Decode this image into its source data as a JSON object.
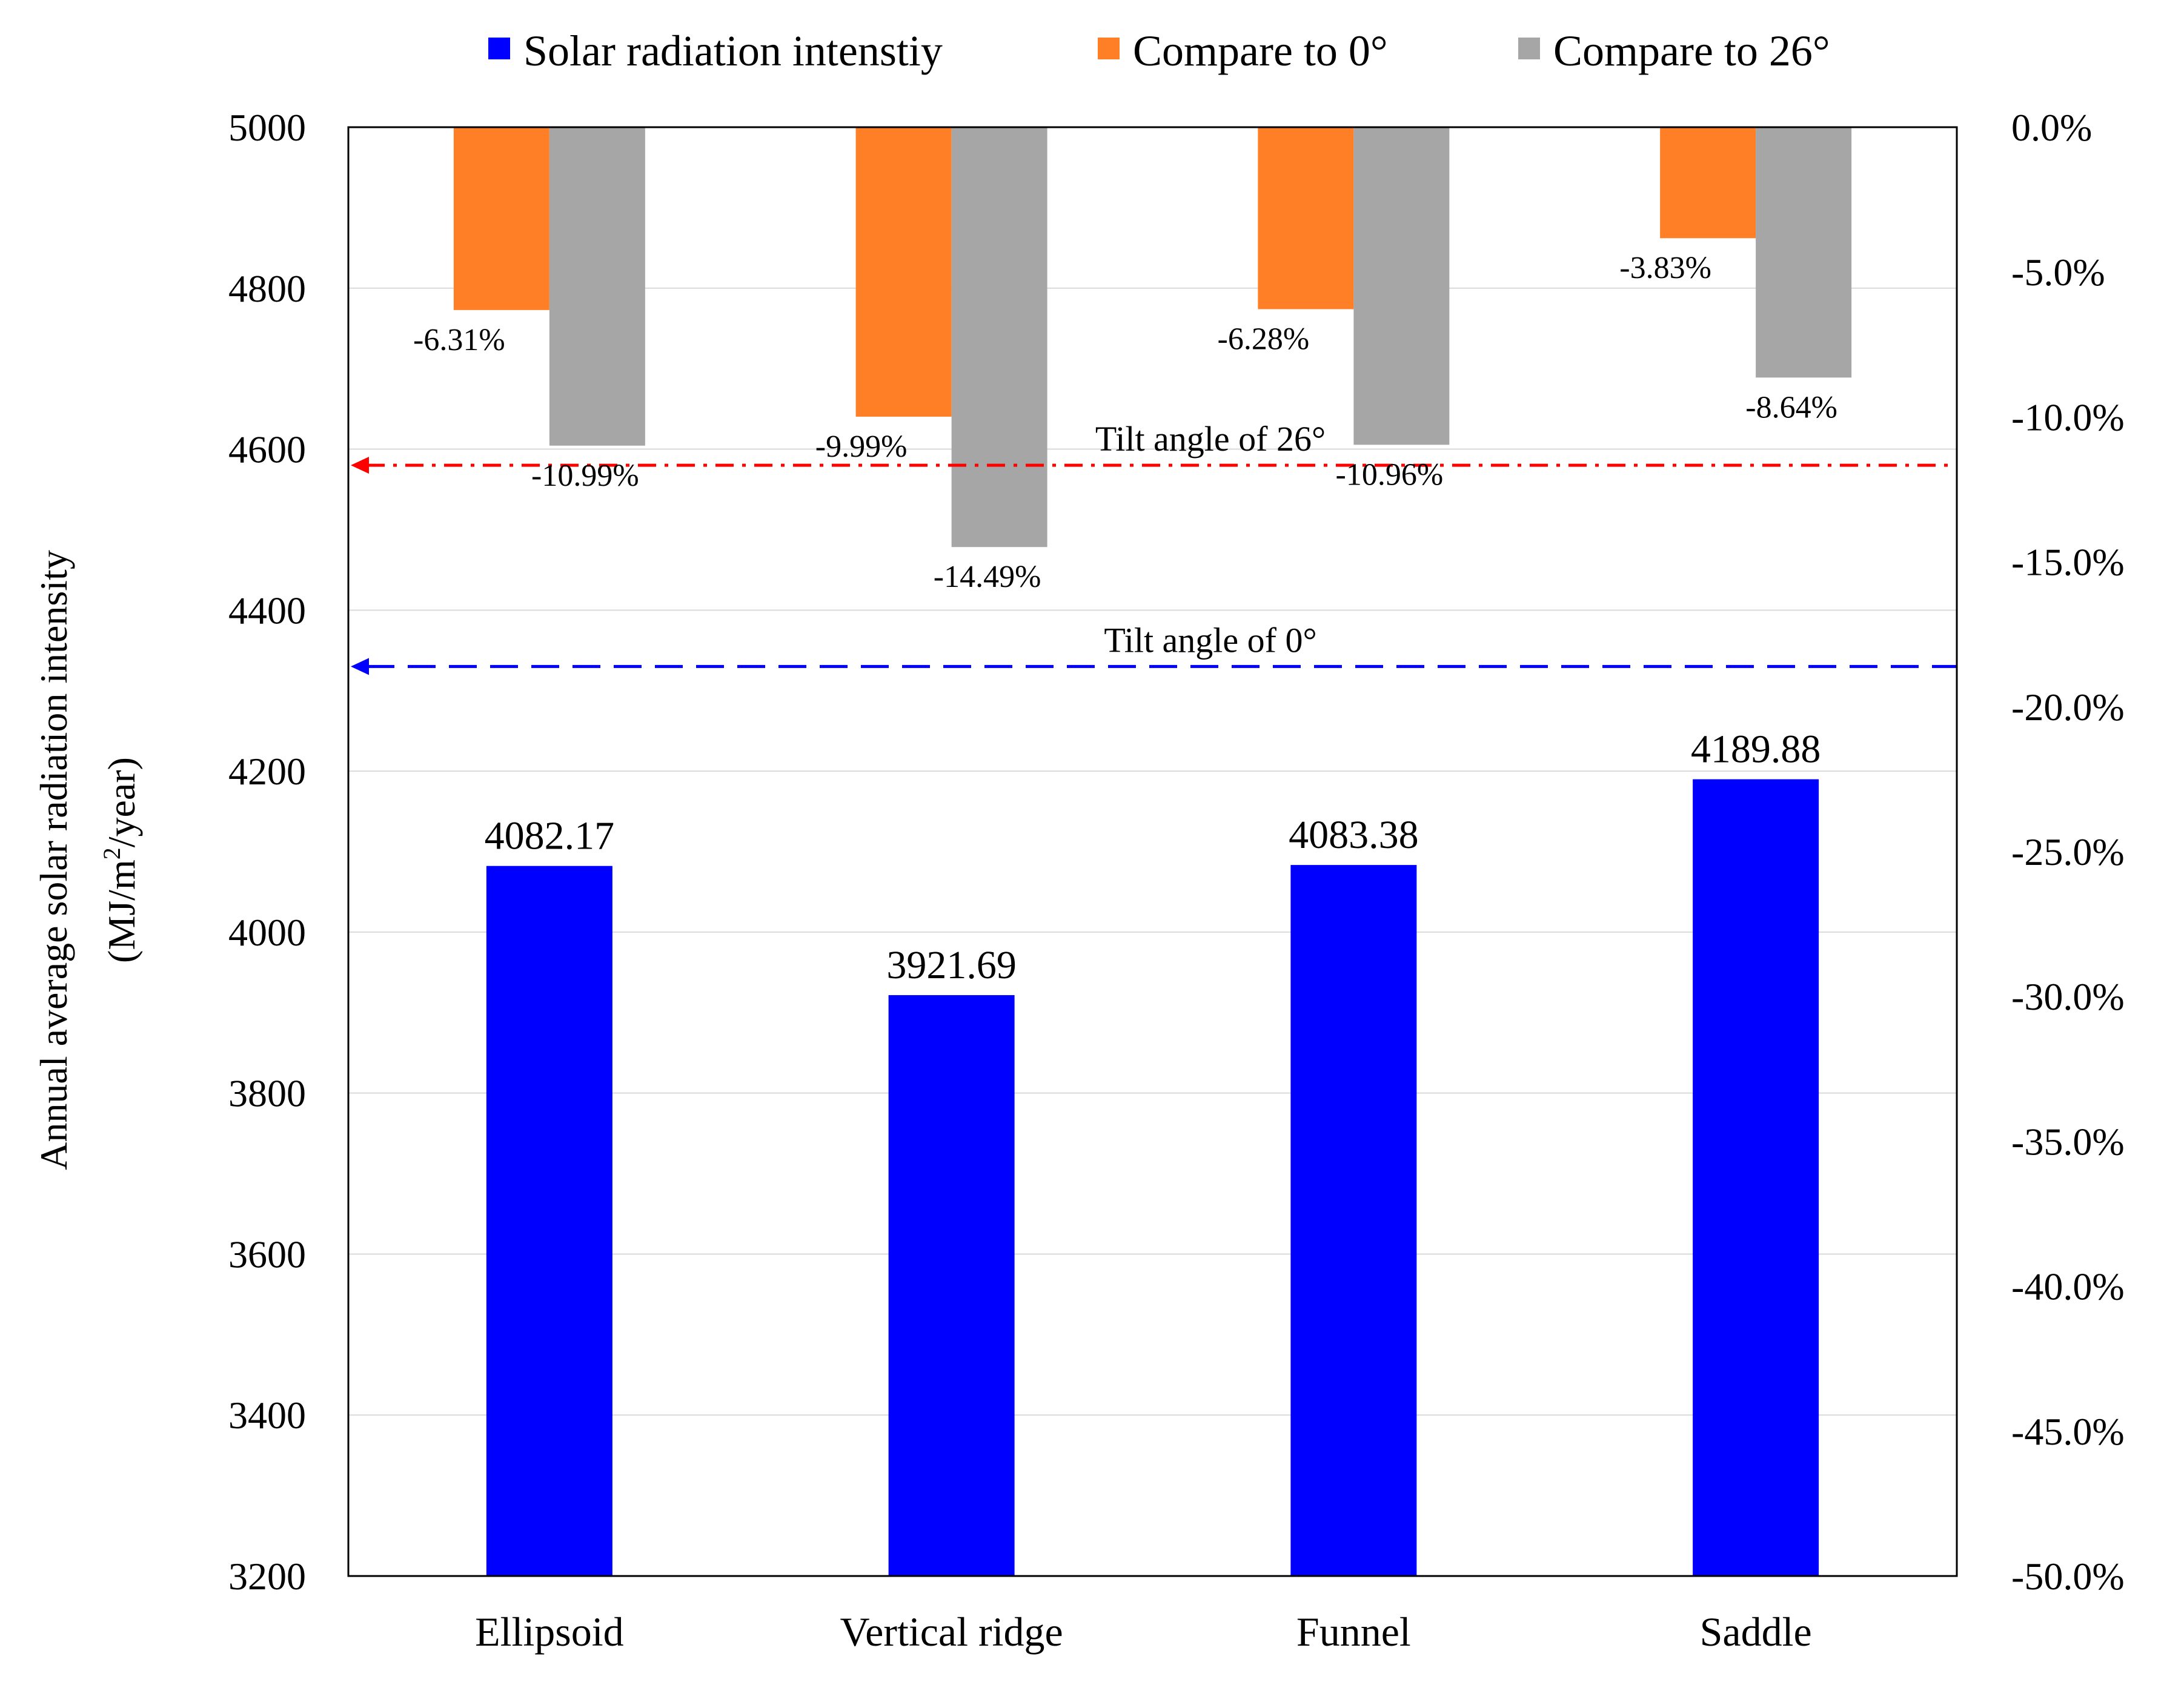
{
  "chart_data": {
    "type": "bar",
    "categories": [
      "Ellipsoid",
      "Vertical ridge",
      "Funnel",
      "Saddle"
    ],
    "series": [
      {
        "name": "Solar radiation intenstiy",
        "axis": "left",
        "color": "#0000ff",
        "values": [
          4082.17,
          3921.69,
          4083.38,
          4189.88
        ]
      },
      {
        "name": "Compare to 0°",
        "axis": "right",
        "color": "#ff7f27",
        "values": [
          -6.31,
          -9.99,
          -6.28,
          -3.83
        ]
      },
      {
        "name": "Compare to 26°",
        "axis": "right",
        "color": "#a6a6a6",
        "values": [
          -10.99,
          -14.49,
          -10.96,
          -8.64
        ]
      }
    ],
    "value_labels": [
      "4082.17",
      "3921.69",
      "4083.38",
      "4189.88"
    ],
    "pct_labels_0": [
      "-6.31%",
      "-9.99%",
      "-6.28%",
      "-3.83%"
    ],
    "pct_labels_26": [
      "-10.99%",
      "-14.49%",
      "-10.96%",
      "-8.64%"
    ],
    "ylim_left": [
      3200,
      5000
    ],
    "ylim_right": [
      -50,
      0
    ],
    "yticks_left": [
      "3200",
      "3400",
      "3600",
      "3800",
      "4000",
      "4200",
      "4400",
      "4600",
      "4800",
      "5000"
    ],
    "yticks_right": [
      "-50.0%",
      "-45.0%",
      "-40.0%",
      "-35.0%",
      "-30.0%",
      "-25.0%",
      "-20.0%",
      "-15.0%",
      "-10.0%",
      "-5.0%",
      "0.0%"
    ],
    "ylabel_line1": "Annual  average solar radiation intensity",
    "ylabel_line2_a": "(MJ/m",
    "ylabel_line2_sup": "2",
    "ylabel_line2_b": "/year)",
    "reference_lines": [
      {
        "label": "Tilt angle of 26°",
        "value": 4580,
        "color": "#ff0000",
        "style": "dash-dot"
      },
      {
        "label": "Tilt angle of 0°",
        "value": 4330,
        "color": "#0000ff",
        "style": "dashed"
      }
    ],
    "legend": [
      "Solar radiation intenstiy",
      "Compare to 0°",
      "Compare to 26°"
    ],
    "grid": true
  }
}
